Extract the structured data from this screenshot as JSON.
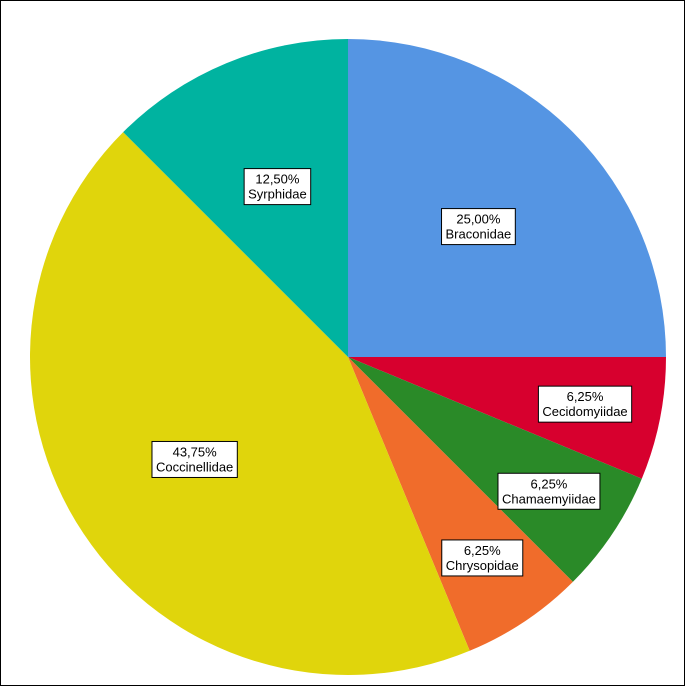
{
  "chart_data": {
    "type": "pie",
    "title": "",
    "start_angle_deg": 0,
    "direction": "clockwise",
    "slices": [
      {
        "label": "Braconidae",
        "percent_label": "25,00%",
        "value": 25.0,
        "color": "#5595e3"
      },
      {
        "label": "Cecidomyiidae",
        "percent_label": "6,25%",
        "value": 6.25,
        "color": "#d7002e"
      },
      {
        "label": "Chamaemyiidae",
        "percent_label": "6,25%",
        "value": 6.25,
        "color": "#2a8a28"
      },
      {
        "label": "Chrysopidae",
        "percent_label": "6,25%",
        "value": 6.25,
        "color": "#f06c2b"
      },
      {
        "label": "Coccinellidae",
        "percent_label": "43,75%",
        "value": 43.75,
        "color": "#e0d50c"
      },
      {
        "label": "Syrphidae",
        "percent_label": "12,50%",
        "value": 12.5,
        "color": "#00b3a0"
      }
    ]
  }
}
